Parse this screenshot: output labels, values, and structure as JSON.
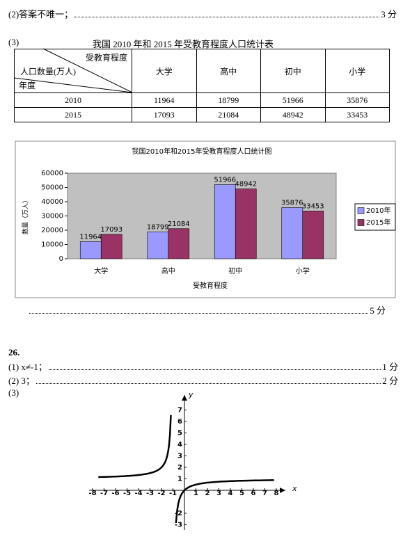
{
  "q25": {
    "part2": {
      "text": "(2)答案不唯一；",
      "score": "3 分"
    },
    "part3": {
      "label": "(3)",
      "score": "5 分"
    }
  },
  "table": {
    "title": "我国 2010 年和 2015 年受教育程度人口统计表",
    "corner": {
      "top": "受教育程度",
      "middle": "人口数量(万人)",
      "bottom": "年度"
    },
    "columns": [
      "大学",
      "高中",
      "初中",
      "小学"
    ],
    "rows": [
      [
        2010,
        11964,
        18799,
        51966,
        35876
      ],
      [
        2015,
        17093,
        21084,
        48942,
        33453
      ]
    ]
  },
  "chart_data": {
    "type": "bar",
    "title": "我国2010年和2015年受教育程度人口统计图",
    "x_label": "受教育程度",
    "y_label": "数量（万人）",
    "categories": [
      "大学",
      "高中",
      "初中",
      "小学"
    ],
    "series": [
      {
        "name": "2010年",
        "color": "#9999ff",
        "values": [
          11964,
          18799,
          51966,
          35876
        ]
      },
      {
        "name": "2015年",
        "color": "#993366",
        "values": [
          17093,
          21084,
          48942,
          33453
        ]
      }
    ],
    "ylim": [
      0,
      60000
    ],
    "yticks": [
      0,
      10000,
      20000,
      30000,
      40000,
      50000,
      60000
    ],
    "legend": "right"
  },
  "q26": {
    "number": "26.",
    "part1": {
      "text": "(1) x≠-1；",
      "score": "1 分"
    },
    "part2": {
      "text": "(2) 3；",
      "score": "2 分"
    },
    "part3": {
      "label": "(3)"
    }
  },
  "graph": {
    "x_axis_label": "x",
    "y_axis_label": "y",
    "x_ticks": [
      -8,
      -7,
      -6,
      -5,
      -4,
      -3,
      -2,
      -1,
      1,
      2,
      3,
      4,
      5,
      6,
      7,
      8
    ],
    "y_ticks": [
      -3,
      -2,
      1,
      2,
      3,
      4,
      5,
      6,
      7
    ]
  }
}
